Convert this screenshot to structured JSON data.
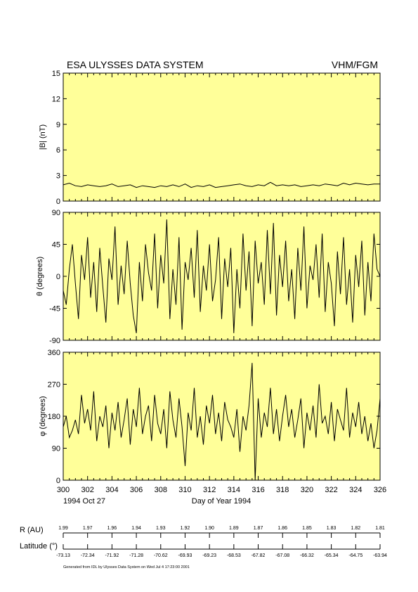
{
  "header": {
    "left": "ESA ULYSSES DATA SYSTEM",
    "right": "VHM/FGM"
  },
  "footer": "Generated from IDL by Ulysses Data System on Wed Jul  4 17:23:00 2001",
  "colors": {
    "panel_bg": "#ffff99",
    "line": "#000000"
  },
  "chart_data": [
    {
      "type": "line",
      "id": "B",
      "ylabel": "|B| (nT)",
      "ylim": [
        0,
        15
      ],
      "yticks": [
        0,
        3,
        6,
        9,
        12,
        15
      ],
      "xlim": [
        300,
        326
      ],
      "series": [
        {
          "x": [
            300.0,
            300.5,
            301.0,
            301.5,
            302.0,
            302.5,
            303.0,
            303.5,
            304.0,
            304.5,
            305.0,
            305.5,
            306.0,
            306.5,
            307.0,
            307.5,
            308.0,
            308.5,
            309.0,
            309.5,
            310.0,
            310.5,
            311.0,
            311.5,
            312.0,
            312.5,
            313.0,
            313.5,
            314.0,
            314.5,
            315.0,
            315.5,
            316.0,
            316.5,
            317.0,
            317.5,
            318.0,
            318.5,
            319.0,
            319.5,
            320.0,
            320.5,
            321.0,
            321.5,
            322.0,
            322.5,
            323.0,
            323.5,
            324.0,
            324.5,
            325.0,
            325.5,
            326.0
          ],
          "values": [
            1.9,
            2.1,
            1.8,
            1.7,
            1.9,
            1.8,
            1.7,
            1.8,
            2.0,
            1.7,
            1.8,
            1.9,
            1.6,
            1.8,
            1.7,
            1.6,
            1.8,
            1.7,
            1.9,
            1.7,
            2.0,
            1.6,
            1.8,
            1.7,
            1.9,
            1.6,
            1.7,
            1.8,
            1.9,
            2.0,
            1.8,
            1.7,
            1.9,
            1.8,
            2.2,
            1.8,
            1.9,
            1.8,
            1.9,
            1.7,
            1.8,
            1.9,
            1.8,
            2.0,
            1.9,
            1.8,
            2.1,
            1.9,
            2.1,
            2.0,
            1.9,
            2.0,
            2.0
          ]
        }
      ]
    },
    {
      "type": "line",
      "id": "theta",
      "ylabel": "θ (degrees)",
      "ylim": [
        -90,
        90
      ],
      "yticks": [
        -90,
        -45,
        0,
        45,
        90
      ],
      "xlim": [
        300,
        326
      ],
      "series": [
        {
          "x": [
            300.0,
            300.25,
            300.5,
            300.75,
            301.0,
            301.25,
            301.5,
            301.75,
            302.0,
            302.25,
            302.5,
            302.75,
            303.0,
            303.25,
            303.5,
            303.75,
            304.0,
            304.25,
            304.5,
            304.75,
            305.0,
            305.25,
            305.5,
            305.75,
            306.0,
            306.25,
            306.5,
            306.75,
            307.0,
            307.25,
            307.5,
            307.75,
            308.0,
            308.25,
            308.5,
            308.75,
            309.0,
            309.25,
            309.5,
            309.75,
            310.0,
            310.25,
            310.5,
            310.75,
            311.0,
            311.25,
            311.5,
            311.75,
            312.0,
            312.25,
            312.5,
            312.75,
            313.0,
            313.25,
            313.5,
            313.75,
            314.0,
            314.25,
            314.5,
            314.75,
            315.0,
            315.25,
            315.5,
            315.75,
            316.0,
            316.25,
            316.5,
            316.75,
            317.0,
            317.25,
            317.5,
            317.75,
            318.0,
            318.25,
            318.5,
            318.75,
            319.0,
            319.25,
            319.5,
            319.75,
            320.0,
            320.25,
            320.5,
            320.75,
            321.0,
            321.25,
            321.5,
            321.75,
            322.0,
            322.25,
            322.5,
            322.75,
            323.0,
            323.25,
            323.5,
            323.75,
            324.0,
            324.25,
            324.5,
            324.75,
            325.0,
            325.25,
            325.5,
            325.75,
            326.0
          ],
          "values": [
            -20,
            -40,
            10,
            45,
            -10,
            -60,
            30,
            -5,
            55,
            -30,
            20,
            -50,
            40,
            -15,
            -65,
            25,
            -5,
            70,
            -40,
            15,
            -25,
            50,
            -10,
            -55,
            -80,
            20,
            -35,
            45,
            5,
            -20,
            60,
            -45,
            30,
            -10,
            80,
            -60,
            10,
            -40,
            55,
            -75,
            20,
            -5,
            40,
            -30,
            65,
            -50,
            15,
            -20,
            45,
            -35,
            -5,
            55,
            -60,
            25,
            -15,
            40,
            -80,
            10,
            -45,
            60,
            -20,
            35,
            -70,
            50,
            -10,
            20,
            -40,
            65,
            -25,
            75,
            -55,
            30,
            -15,
            50,
            -35,
            10,
            -60,
            40,
            -20,
            70,
            -45,
            15,
            -5,
            45,
            -30,
            60,
            -50,
            20,
            -10,
            -70,
            35,
            -25,
            55,
            -40,
            10,
            -65,
            30,
            -15,
            50,
            -55,
            20,
            -35,
            60,
            10,
            0
          ]
        }
      ]
    },
    {
      "type": "line",
      "id": "phi",
      "ylabel": "φ (degrees)",
      "ylim": [
        0,
        360
      ],
      "yticks": [
        0,
        90,
        180,
        270,
        360
      ],
      "xlim": [
        300,
        326
      ],
      "xticks": [
        300,
        302,
        304,
        306,
        308,
        310,
        312,
        314,
        316,
        318,
        320,
        322,
        324,
        326
      ],
      "xlabel": "Day of Year 1994",
      "date_label": "1994 Oct 27",
      "series": [
        {
          "x": [
            300.0,
            300.25,
            300.5,
            300.75,
            301.0,
            301.25,
            301.5,
            301.75,
            302.0,
            302.25,
            302.5,
            302.75,
            303.0,
            303.25,
            303.5,
            303.75,
            304.0,
            304.25,
            304.5,
            304.75,
            305.0,
            305.25,
            305.5,
            305.75,
            306.0,
            306.25,
            306.5,
            306.75,
            307.0,
            307.25,
            307.5,
            307.75,
            308.0,
            308.25,
            308.5,
            308.75,
            309.0,
            309.25,
            309.5,
            309.75,
            310.0,
            310.25,
            310.5,
            310.75,
            311.0,
            311.25,
            311.5,
            311.75,
            312.0,
            312.25,
            312.5,
            312.75,
            313.0,
            313.25,
            313.5,
            313.75,
            314.0,
            314.25,
            314.5,
            314.75,
            315.0,
            315.25,
            315.5,
            315.75,
            316.0,
            316.25,
            316.5,
            316.75,
            317.0,
            317.25,
            317.5,
            317.75,
            318.0,
            318.25,
            318.5,
            318.75,
            319.0,
            319.25,
            319.5,
            319.75,
            320.0,
            320.25,
            320.5,
            320.75,
            321.0,
            321.25,
            321.5,
            321.75,
            322.0,
            322.25,
            322.5,
            322.75,
            323.0,
            323.25,
            323.5,
            323.75,
            324.0,
            324.25,
            324.5,
            324.75,
            325.0,
            325.25,
            325.5,
            325.75,
            326.0
          ],
          "values": [
            150,
            180,
            120,
            140,
            170,
            130,
            240,
            160,
            200,
            140,
            250,
            110,
            180,
            150,
            210,
            90,
            190,
            140,
            220,
            120,
            170,
            230,
            100,
            200,
            150,
            260,
            130,
            180,
            210,
            110,
            240,
            160,
            130,
            200,
            90,
            250,
            170,
            120,
            230,
            150,
            40,
            190,
            140,
            260,
            120,
            180,
            100,
            210,
            160,
            240,
            130,
            190,
            110,
            220,
            170,
            150,
            120,
            200,
            80,
            180,
            140,
            210,
            330,
            0,
            230,
            120,
            190,
            150,
            260,
            130,
            200,
            110,
            180,
            240,
            150,
            200,
            120,
            170,
            230,
            90,
            190,
            140,
            210,
            120,
            270,
            160,
            180,
            130,
            220,
            110,
            200,
            170,
            140,
            260,
            120,
            190,
            150,
            220,
            130,
            180,
            110,
            160,
            90,
            140,
            230
          ]
        }
      ]
    },
    {
      "type": "table",
      "id": "ephemeris",
      "R_label": "R (AU)",
      "R": [
        "1.99",
        "1.97",
        "1.96",
        "1.94",
        "1.93",
        "1.92",
        "1.90",
        "1.89",
        "1.87",
        "1.86",
        "1.85",
        "1.83",
        "1.82",
        "1.81"
      ],
      "lat_label": "Latitude (°)",
      "lat": [
        "-73.13",
        "-72.34",
        "-71.92",
        "-71.28",
        "-70.62",
        "-69.93",
        "-69.23",
        "-68.53",
        "-67.82",
        "-67.08",
        "-66.32",
        "-65.34",
        "-64.75",
        "-63.94"
      ]
    }
  ]
}
